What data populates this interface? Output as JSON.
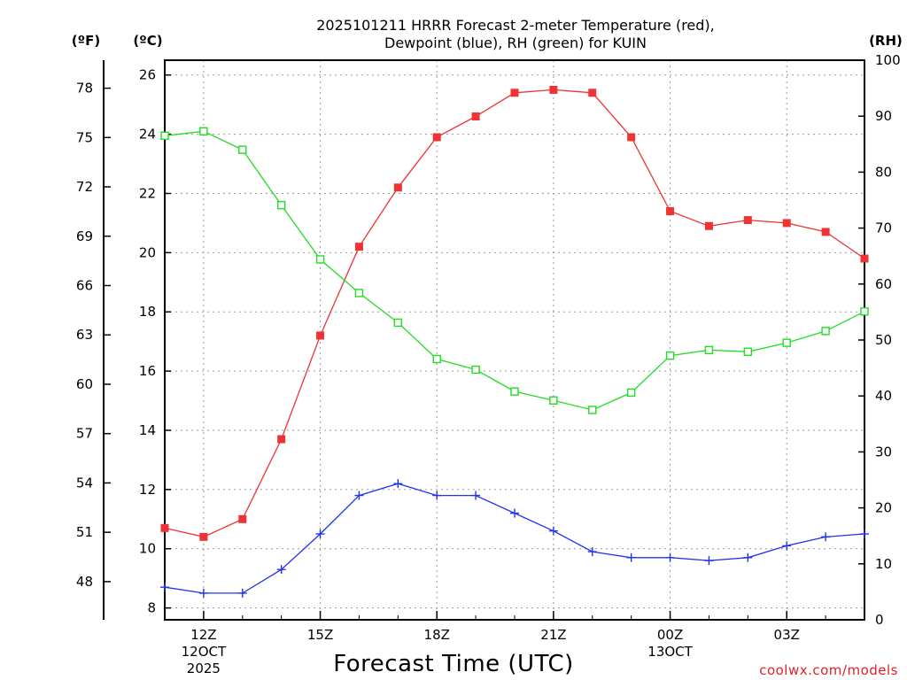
{
  "chart_data": {
    "type": "line",
    "title_line1": "2025101211 HRRR Forecast 2-meter Temperature (red),",
    "title_line2": "Dewpoint (blue), RH (green) for KUIN",
    "units": {
      "fahrenheit": "(ºF)",
      "celsius": "(ºC)",
      "rh": "(RH)"
    },
    "xlabel": "Forecast Time (UTC)",
    "credit": "coolwx.com/models",
    "x_hours": [
      11,
      12,
      13,
      14,
      15,
      16,
      17,
      18,
      19,
      20,
      21,
      22,
      23,
      24,
      25,
      26,
      27,
      28,
      29
    ],
    "x_ticks": [
      {
        "hour": 12,
        "label": "12Z",
        "sub1": "12OCT",
        "sub2": "2025"
      },
      {
        "hour": 15,
        "label": "15Z",
        "sub1": "",
        "sub2": ""
      },
      {
        "hour": 18,
        "label": "18Z",
        "sub1": "",
        "sub2": ""
      },
      {
        "hour": 21,
        "label": "21Z",
        "sub1": "",
        "sub2": ""
      },
      {
        "hour": 24,
        "label": "00Z",
        "sub1": "13OCT",
        "sub2": ""
      },
      {
        "hour": 27,
        "label": "03Z",
        "sub1": "",
        "sub2": ""
      }
    ],
    "xlim": [
      11,
      29
    ],
    "ylim_c": [
      7.6,
      26.5
    ],
    "ylim_rh": [
      0,
      100
    ],
    "y_ticks_c": [
      "8",
      "10",
      "12",
      "14",
      "16",
      "18",
      "20",
      "22",
      "24",
      "26"
    ],
    "y_ticks_f": [
      "48",
      "51",
      "54",
      "57",
      "60",
      "63",
      "66",
      "69",
      "72",
      "75",
      "78"
    ],
    "y_ticks_rh": [
      "0",
      "10",
      "20",
      "30",
      "40",
      "50",
      "60",
      "70",
      "80",
      "90",
      "100"
    ],
    "series": [
      {
        "name": "Temperature",
        "axis": "c",
        "color": "#ee3333",
        "marker": "filled-square",
        "values": [
          10.7,
          10.4,
          11.0,
          13.7,
          17.2,
          20.2,
          22.2,
          23.9,
          24.6,
          25.4,
          25.5,
          25.4,
          23.9,
          21.4,
          20.9,
          21.1,
          21.0,
          20.7,
          19.8
        ]
      },
      {
        "name": "Dewpoint",
        "axis": "c",
        "color": "#2233ee",
        "marker": "plus",
        "values": [
          8.7,
          8.5,
          8.5,
          9.3,
          10.5,
          11.8,
          12.2,
          11.8,
          11.8,
          11.2,
          10.6,
          9.9,
          9.7,
          9.7,
          9.6,
          9.7,
          10.1,
          10.4,
          10.5
        ]
      },
      {
        "name": "RH",
        "axis": "rh",
        "color": "#22dd22",
        "marker": "open-square",
        "values": [
          86.5,
          87.3,
          84.0,
          74.1,
          64.4,
          58.4,
          53.1,
          46.6,
          44.7,
          40.8,
          39.2,
          37.5,
          40.6,
          47.2,
          48.2,
          47.9,
          49.5,
          51.6,
          55.1
        ]
      }
    ]
  }
}
